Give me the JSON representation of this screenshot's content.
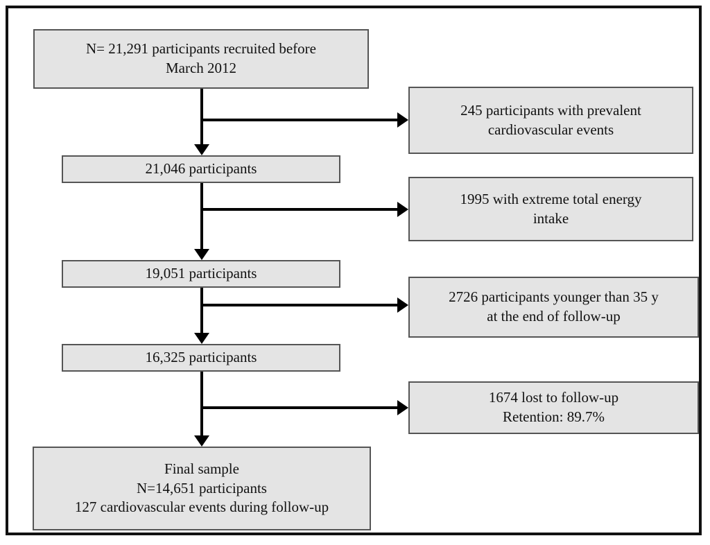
{
  "diagram": {
    "type": "participant-flow-diagram",
    "colors": {
      "box_fill": "#e4e4e4",
      "box_border": "#555555",
      "arrow": "#000000",
      "outer_border": "#111111",
      "text": "#111111"
    },
    "main_flow": [
      {
        "id": "recruited",
        "lines": [
          "N= 21,291 participants recruited before",
          "March 2012"
        ]
      },
      {
        "id": "after-prevalent-cvd-exclusion",
        "lines": [
          "21,046 participants"
        ]
      },
      {
        "id": "after-energy-intake-exclusion",
        "lines": [
          "19,051 participants"
        ]
      },
      {
        "id": "after-age-exclusion",
        "lines": [
          "16,325 participants"
        ]
      },
      {
        "id": "final-sample",
        "lines": [
          "Final sample",
          "N=14,651 participants",
          "127 cardiovascular events during follow-up"
        ]
      }
    ],
    "exclusions": [
      {
        "id": "prevalent-cardiovascular-events",
        "lines": [
          "245 participants with prevalent",
          "cardiovascular events"
        ]
      },
      {
        "id": "extreme-total-energy-intake",
        "lines": [
          "1995 with extreme total energy",
          "intake"
        ]
      },
      {
        "id": "younger-than-35",
        "lines": [
          "2726 participants younger than 35 y",
          "at the end of follow-up"
        ]
      },
      {
        "id": "lost-to-follow-up",
        "lines": [
          "1674 lost to follow-up",
          "Retention: 89.7%"
        ]
      }
    ]
  }
}
